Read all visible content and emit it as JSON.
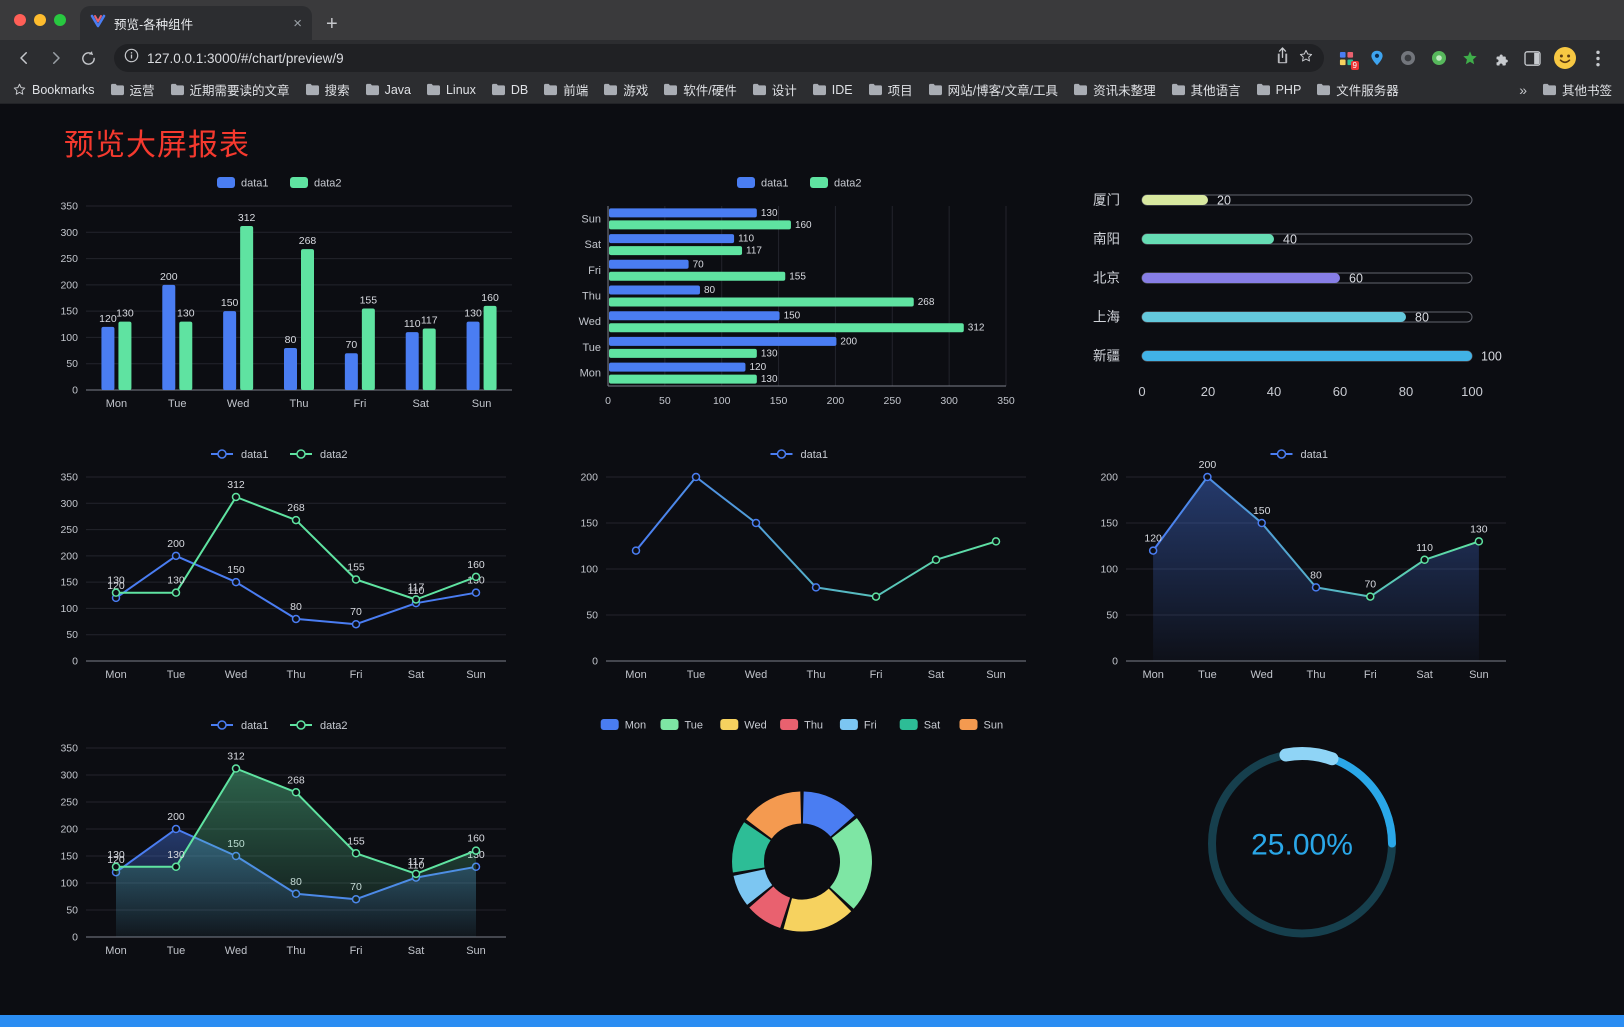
{
  "browser": {
    "tab": {
      "title": "预览-各种组件",
      "close": "×",
      "new_tab": "+"
    },
    "address": {
      "url": "127.0.0.1:3000/#/chart/preview/9"
    },
    "extensions": {
      "badge": "9"
    },
    "bookmarks_bar": {
      "bookmarks_label": "Bookmarks",
      "folders": [
        "运营",
        "近期需要读的文章",
        "搜索",
        "Java",
        "Linux",
        "DB",
        "前端",
        "游戏",
        "软件/硬件",
        "设计",
        "IDE",
        "项目",
        "网站/博客/文章/工具",
        "资讯未整理",
        "其他语言",
        "PHP",
        "文件服务器"
      ],
      "overflow_chevron": "»",
      "other_bookmarks": "其他书签"
    }
  },
  "page": {
    "title": "预览大屏报表",
    "title_color": "#f5392e",
    "footer_color": "#2b8df2",
    "background": "#0c0d12"
  },
  "chart_data": [
    {
      "id": "grouped-bar",
      "type": "bar",
      "categories": [
        "Mon",
        "Tue",
        "Wed",
        "Thu",
        "Fri",
        "Sat",
        "Sun"
      ],
      "series": [
        {
          "name": "data1",
          "color": "#4a7df2",
          "values": [
            120,
            200,
            150,
            80,
            70,
            110,
            130
          ]
        },
        {
          "name": "data2",
          "color": "#5fe3a1",
          "values": [
            130,
            130,
            312,
            268,
            155,
            117,
            160
          ]
        }
      ],
      "ylim": [
        0,
        350
      ],
      "yticks": [
        0,
        50,
        100,
        150,
        200,
        250,
        300,
        350
      ],
      "labels": true,
      "legend_style": "rect",
      "grid": true,
      "legend_position": "top"
    },
    {
      "id": "horizontal-bar",
      "type": "hbar",
      "categories": [
        "Mon",
        "Tue",
        "Wed",
        "Thu",
        "Fri",
        "Sat",
        "Sun"
      ],
      "series": [
        {
          "name": "data1",
          "color": "#4a7df2",
          "values": [
            120,
            200,
            150,
            80,
            70,
            110,
            130
          ]
        },
        {
          "name": "data2",
          "color": "#5fe3a1",
          "values": [
            130,
            130,
            312,
            268,
            155,
            117,
            160
          ]
        }
      ],
      "xlim": [
        0,
        350
      ],
      "xticks": [
        0,
        50,
        100,
        150,
        200,
        250,
        300,
        350
      ],
      "labels": true,
      "legend_style": "rect",
      "grid": true,
      "legend_position": "top"
    },
    {
      "id": "progress-bars",
      "type": "progress",
      "max": 100,
      "items": [
        {
          "label": "厦门",
          "value": 20,
          "color": "#d8e8a0"
        },
        {
          "label": "南阳",
          "value": 40,
          "color": "#66dcb4"
        },
        {
          "label": "北京",
          "value": 60,
          "color": "#877ee6"
        },
        {
          "label": "上海",
          "value": 80,
          "color": "#64c8dc"
        },
        {
          "label": "新疆",
          "value": 100,
          "color": "#41b2e6"
        }
      ],
      "xticks": [
        0,
        20,
        40,
        60,
        80,
        100
      ]
    },
    {
      "id": "line-multi",
      "type": "line",
      "categories": [
        "Mon",
        "Tue",
        "Wed",
        "Thu",
        "Fri",
        "Sat",
        "Sun"
      ],
      "series": [
        {
          "name": "data1",
          "color": "#4a7df2",
          "values": [
            120,
            200,
            150,
            80,
            70,
            110,
            130
          ]
        },
        {
          "name": "data2",
          "color": "#5fe3a1",
          "values": [
            130,
            130,
            312,
            268,
            155,
            117,
            160
          ]
        }
      ],
      "ylim": [
        0,
        350
      ],
      "yticks": [
        0,
        50,
        100,
        150,
        200,
        250,
        300,
        350
      ],
      "labels": true,
      "legend_style": "line",
      "grid": true,
      "legend_position": "top"
    },
    {
      "id": "line-gradient",
      "type": "line",
      "categories": [
        "Mon",
        "Tue",
        "Wed",
        "Thu",
        "Fri",
        "Sat",
        "Sun"
      ],
      "series": [
        {
          "name": "data1",
          "color": "#4a7df2",
          "gradient": [
            "#4a7df2",
            "#5fe3a1"
          ],
          "values": [
            120,
            200,
            150,
            80,
            70,
            110,
            130
          ]
        }
      ],
      "ylim": [
        0,
        200
      ],
      "yticks": [
        0,
        50,
        100,
        150,
        200
      ],
      "labels": false,
      "legend_style": "line",
      "grid": true,
      "legend_position": "top"
    },
    {
      "id": "line-area",
      "type": "line",
      "categories": [
        "Mon",
        "Tue",
        "Wed",
        "Thu",
        "Fri",
        "Sat",
        "Sun"
      ],
      "series": [
        {
          "name": "data1",
          "color": "#4a7df2",
          "gradient": [
            "#4a7df2",
            "#5fe3a1"
          ],
          "area": true,
          "values": [
            120,
            200,
            150,
            80,
            70,
            110,
            130
          ]
        }
      ],
      "ylim": [
        0,
        200
      ],
      "yticks": [
        0,
        50,
        100,
        150,
        200
      ],
      "labels": true,
      "legend_style": "line",
      "grid": true,
      "legend_position": "top"
    },
    {
      "id": "line-multi-area",
      "type": "line",
      "categories": [
        "Mon",
        "Tue",
        "Wed",
        "Thu",
        "Fri",
        "Sat",
        "Sun"
      ],
      "series": [
        {
          "name": "data1",
          "color": "#4a7df2",
          "area": true,
          "values": [
            120,
            200,
            150,
            80,
            70,
            110,
            130
          ]
        },
        {
          "name": "data2",
          "color": "#5fe3a1",
          "area": true,
          "values": [
            130,
            130,
            312,
            268,
            155,
            117,
            160
          ]
        }
      ],
      "ylim": [
        0,
        350
      ],
      "yticks": [
        0,
        50,
        100,
        150,
        200,
        250,
        300,
        350
      ],
      "labels": true,
      "legend_style": "line",
      "grid": true,
      "legend_position": "top"
    },
    {
      "id": "donut",
      "type": "pie",
      "donut": true,
      "legend_position": "top",
      "items": [
        {
          "label": "Mon",
          "value": 120,
          "color": "#4a7df2"
        },
        {
          "label": "Tue",
          "value": 200,
          "color": "#7ee6a4"
        },
        {
          "label": "Wed",
          "value": 150,
          "color": "#f6d25f"
        },
        {
          "label": "Thu",
          "value": 80,
          "color": "#e9616f"
        },
        {
          "label": "Fri",
          "value": 70,
          "color": "#7cc6f2"
        },
        {
          "label": "Sat",
          "value": 110,
          "color": "#2dbd96"
        },
        {
          "label": "Sun",
          "value": 130,
          "color": "#f49a50"
        }
      ]
    },
    {
      "id": "gauge",
      "type": "gauge",
      "value": 25,
      "label": "25.00%",
      "color": "#2aa7e8",
      "track_color": "#163f4d",
      "highlight_color": "#8fd4f6"
    }
  ]
}
